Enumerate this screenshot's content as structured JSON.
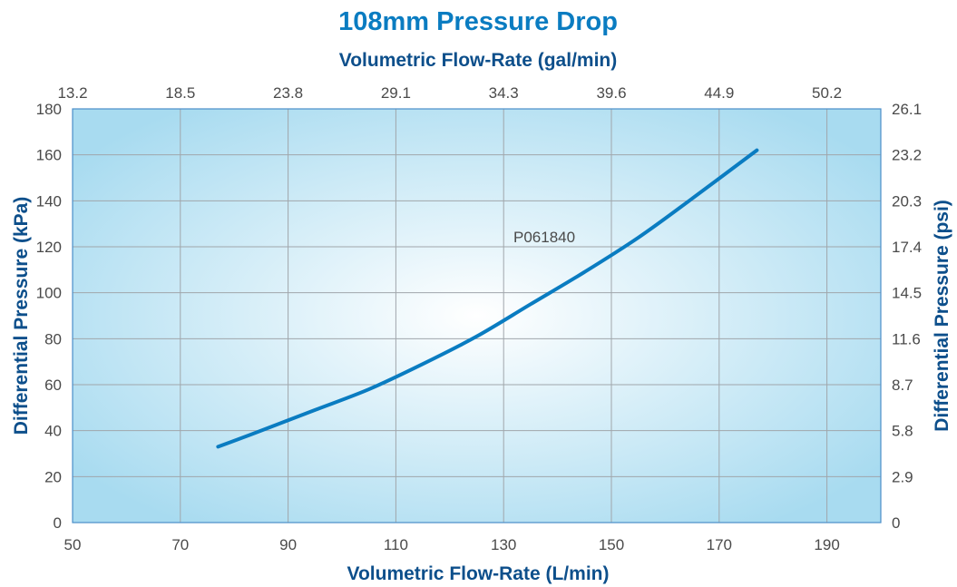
{
  "chart_data": {
    "type": "line",
    "title": "108mm Pressure Drop",
    "x_top_label": "Volumetric Flow-Rate (gal/min)",
    "x_bottom_label": "Volumetric Flow-Rate (L/min)",
    "y_left_label": "Differential Pressure (kPa)",
    "y_right_label": "Differential Pressure (psi)",
    "xlim": [
      50,
      200
    ],
    "ylim": [
      0,
      180
    ],
    "x_ticks": [
      "50",
      "70",
      "90",
      "110",
      "130",
      "150",
      "170",
      "190"
    ],
    "x_top_ticks": [
      "13.2",
      "18.5",
      "23.8",
      "29.1",
      "34.3",
      "39.6",
      "44.9",
      "50.2"
    ],
    "y_ticks": [
      "0",
      "20",
      "40",
      "60",
      "80",
      "100",
      "120",
      "140",
      "160",
      "180"
    ],
    "y_right_ticks": [
      "0",
      "2.9",
      "5.8",
      "8.7",
      "11.6",
      "14.5",
      "17.4",
      "20.3",
      "23.2",
      "26.1"
    ],
    "grid": true,
    "colors": {
      "line": "#0a7cc1",
      "title": "#0a7cc1",
      "axis_title": "#0d4f8b",
      "plot_edge": "#a8dbf0",
      "plot_center": "#ffffff",
      "grid": "#a0a6ab",
      "frame": "#4a8ec9"
    },
    "annotation": "P061840",
    "series": [
      {
        "name": "P061840",
        "x": [
          77,
          85,
          95,
          105,
          115,
          125,
          135,
          145,
          155,
          165,
          177
        ],
        "y": [
          33,
          40,
          49,
          58,
          69,
          81,
          95,
          109,
          124,
          141,
          162
        ]
      }
    ]
  }
}
